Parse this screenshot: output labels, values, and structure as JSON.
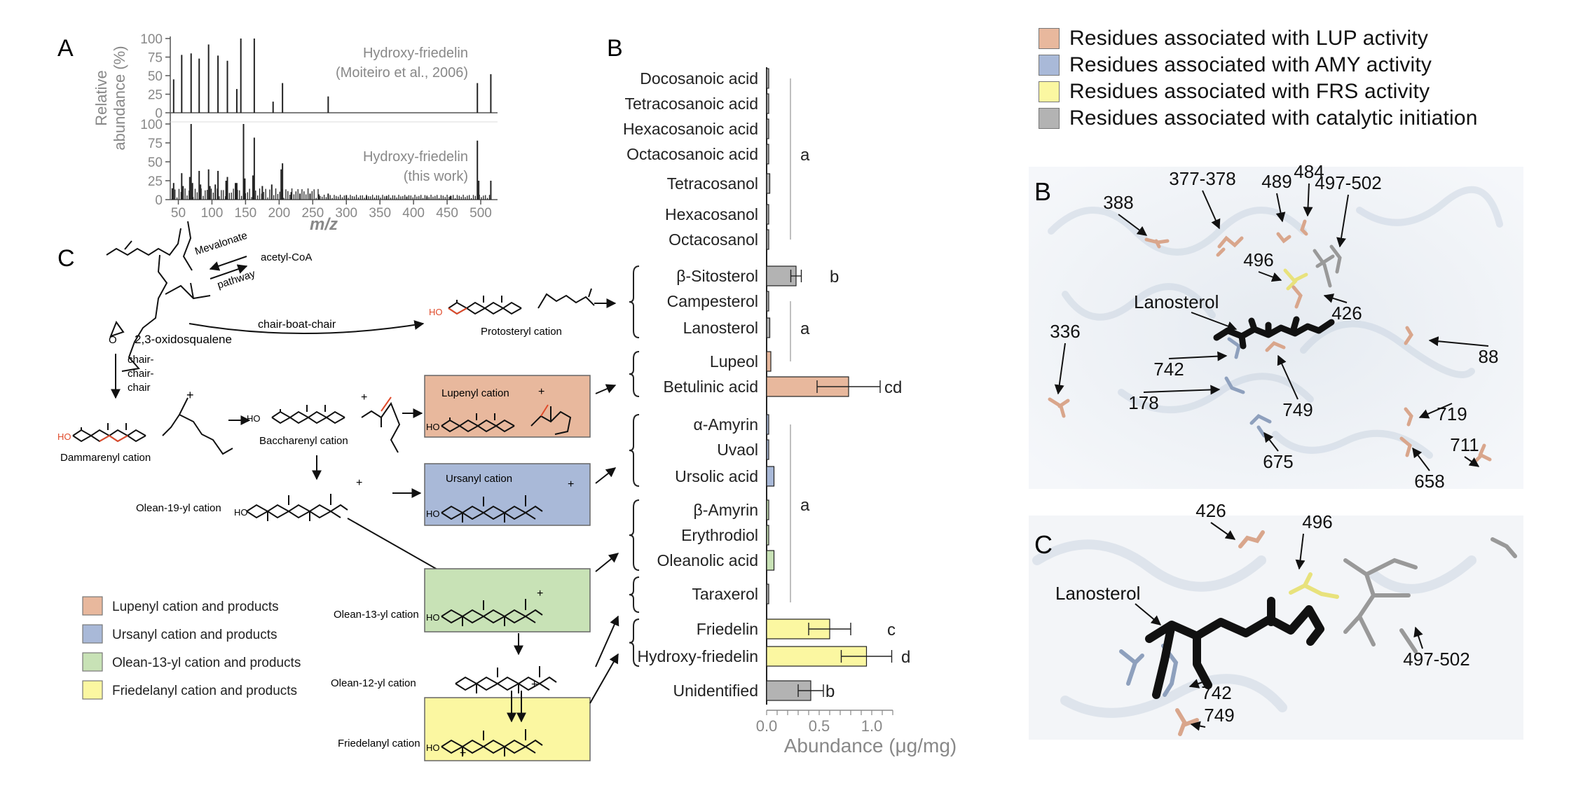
{
  "panel_A": {
    "label": "A",
    "ylabel_line1": "Relative",
    "ylabel_line2": "abundance (%)",
    "xlabel": "m/z",
    "yticks": [
      "0",
      "25",
      "50",
      "75",
      "100"
    ],
    "xticks": [
      "50",
      "100",
      "150",
      "200",
      "250",
      "300",
      "350",
      "400",
      "450",
      "500"
    ],
    "top_caption1": "Hydroxy-friedelin",
    "top_caption2": "(Moiteiro et al., 2006)",
    "bottom_caption1": "Hydroxy-friedelin",
    "bottom_caption2": "(this work)"
  },
  "panel_B": {
    "label": "B",
    "xlabel": "Abundance (μg/mg)",
    "xticks": [
      "0.0",
      "0.5",
      "1.0"
    ]
  },
  "panel_C": {
    "label": "C",
    "precursor": "acetyl-CoA",
    "pathway1": "Mevalonate",
    "pathway2": "pathway",
    "oxido": "2,3-oxidosqualene",
    "cbc": "chair-boat-chair",
    "ccc1": "chair-",
    "ccc2": "chair-",
    "ccc3": "chair",
    "ho": "HO",
    "protosteryl": "Protosteryl cation",
    "dammarenyl": "Dammarenyl cation",
    "baccharenyl": "Baccharenyl cation",
    "lupenyl": "Lupenyl cation",
    "ursanyl": "Ursanyl cation",
    "olean19": "Olean-19-yl cation",
    "olean13": "Olean-13-yl cation",
    "olean12": "Olean-12-yl cation",
    "friedelanyl": "Friedelanyl cation",
    "legend": [
      {
        "label": "Lupenyl cation and products",
        "color": "#e8b89d"
      },
      {
        "label": "Ursanyl cation and products",
        "color": "#a9b9d8"
      },
      {
        "label": "Olean-13-yl cation and products",
        "color": "#c8e2b6"
      },
      {
        "label": "Friedelanyl cation and products",
        "color": "#fbf7a1"
      }
    ]
  },
  "structure_legend": [
    {
      "label": "Residues associated with LUP activity",
      "color": "#e8b89d"
    },
    {
      "label": "Residues associated with AMY activity",
      "color": "#a9b9d8"
    },
    {
      "label": "Residues associated with FRS activity",
      "color": "#fbf7a1"
    },
    {
      "label": "Residues associated with catalytic initiation",
      "color": "#b3b3b3"
    }
  ],
  "struct_B": {
    "label": "B",
    "ligand": "Lanosterol",
    "residues": [
      "388",
      "377-378",
      "489",
      "484",
      "497-502",
      "496",
      "426",
      "336",
      "742",
      "178",
      "749",
      "88",
      "675",
      "719",
      "711",
      "658"
    ]
  },
  "struct_C": {
    "label": "C",
    "ligand": "Lanosterol",
    "residues": [
      "426",
      "496",
      "497-502",
      "742",
      "749"
    ]
  },
  "chart_data": {
    "type": "bar",
    "orientation": "horizontal",
    "xlabel": "Abundance (μg/mg)",
    "xlim": [
      0,
      1.2
    ],
    "categories": [
      "Docosanoic acid",
      "Tetracosanoic acid",
      "Hexacosanoic acid",
      "Octacosanoic acid",
      "Tetracosanol",
      "Hexacosanol",
      "Octacosanol",
      "β-Sitosterol",
      "Campesterol",
      "Lanosterol",
      "Lupeol",
      "Betulinic acid",
      "α-Amyrin",
      "Uvaol",
      "Ursolic acid",
      "β-Amyrin",
      "Erythrodiol",
      "Oleanolic acid",
      "Taraxerol",
      "Friedelin",
      "Hydroxy-friedelin",
      "Unidentified"
    ],
    "values": [
      0.01,
      0.01,
      0.005,
      0.005,
      0.03,
      0.01,
      0.005,
      0.28,
      0.005,
      0.03,
      0.04,
      0.78,
      0.02,
      0.015,
      0.07,
      0.015,
      0.02,
      0.07,
      0.01,
      0.6,
      0.95,
      0.42
    ],
    "errors": [
      0.005,
      0.005,
      0.002,
      0.002,
      0.01,
      0.005,
      0.002,
      0.05,
      0.002,
      0.01,
      0.01,
      0.3,
      0.01,
      0.005,
      0.02,
      0.005,
      0.01,
      0.02,
      0.005,
      0.2,
      0.24,
      0.12
    ],
    "bar_colors": [
      "#b3b3b3",
      "#b3b3b3",
      "#b3b3b3",
      "#b3b3b3",
      "#b3b3b3",
      "#b3b3b3",
      "#b3b3b3",
      "#b3b3b3",
      "#b3b3b3",
      "#b3b3b3",
      "#e8b89d",
      "#e8b89d",
      "#a9b9d8",
      "#a9b9d8",
      "#a9b9d8",
      "#c8e2b6",
      "#c8e2b6",
      "#c8e2b6",
      "#b3b3b3",
      "#fbf7a1",
      "#fbf7a1",
      "#b3b3b3"
    ],
    "significance": [
      {
        "letter": "a",
        "anchor": 3
      },
      {
        "letter": "b",
        "anchor": 7
      },
      {
        "letter": "a",
        "anchor": 9
      },
      {
        "letter": "cd",
        "anchor": 11
      },
      {
        "letter": "a",
        "anchor": 16
      },
      {
        "letter": "c",
        "anchor": 19
      },
      {
        "letter": "d",
        "anchor": 20
      },
      {
        "letter": "b",
        "anchor": 21
      }
    ]
  }
}
